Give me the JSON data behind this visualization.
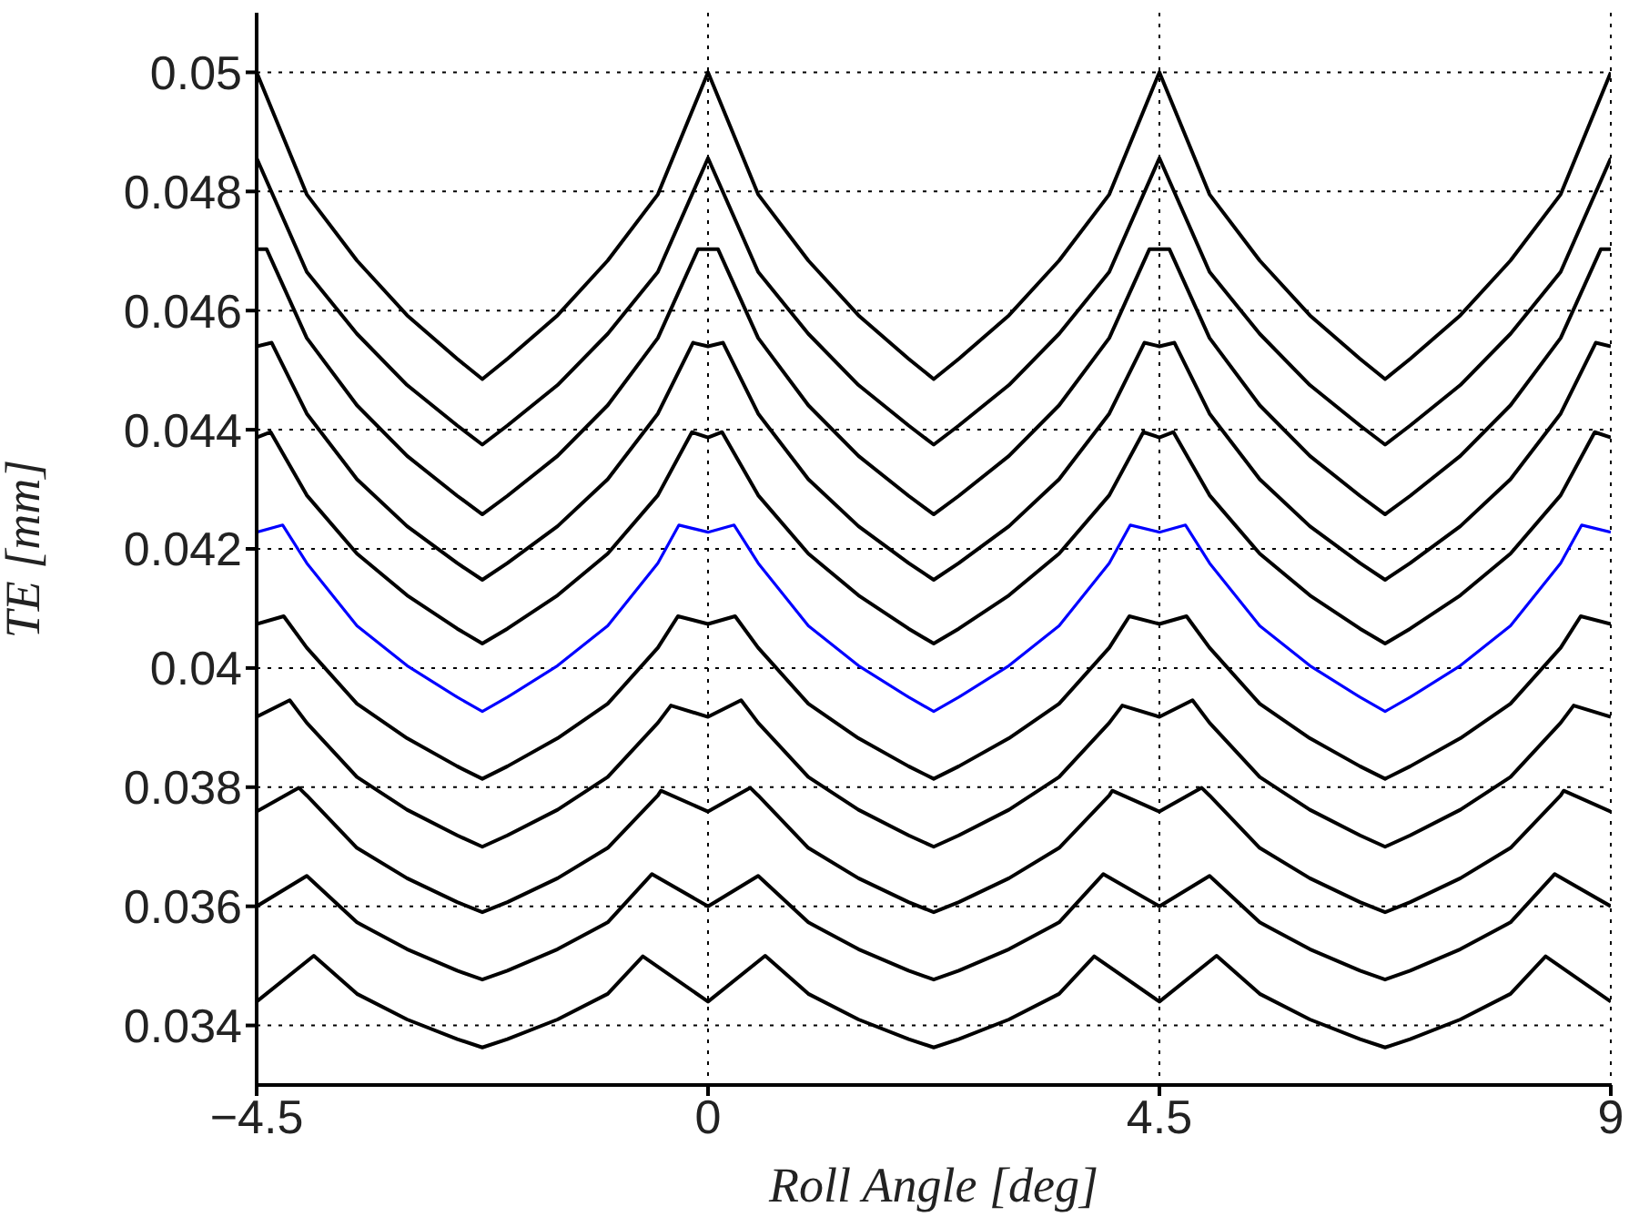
{
  "chart_data": {
    "type": "line",
    "xlabel": "Roll Angle [deg]",
    "ylabel": "TE [mm]",
    "xlim": [
      -4.5,
      9
    ],
    "xticks": [
      -4.5,
      0,
      4.5,
      9
    ],
    "ylim": [
      0.033,
      0.051
    ],
    "yticks": [
      0.034,
      0.036,
      0.038,
      0.04,
      0.042,
      0.044,
      0.046,
      0.048,
      0.05
    ],
    "grid": true,
    "series": [
      {
        "color": "#000000",
        "x": [
          -4.5,
          -4,
          -3.5,
          -3,
          -2.5,
          -2.25,
          -2,
          -1.5,
          -1,
          -0.5,
          0,
          0.5,
          1,
          1.5,
          2,
          2.25,
          2.5,
          3,
          3.5,
          4,
          4.5,
          5,
          5.5,
          6,
          6.5,
          6.75,
          7,
          7.5,
          8,
          8.5,
          9
        ],
        "values": [
          0.05,
          0.04795,
          0.04684,
          0.04592,
          0.04519,
          0.04485,
          0.04519,
          0.04592,
          0.04684,
          0.04795,
          0.05,
          0.04795,
          0.04684,
          0.04592,
          0.04519,
          0.04485,
          0.04519,
          0.04592,
          0.04684,
          0.04795,
          0.05,
          0.04795,
          0.04684,
          0.04592,
          0.04519,
          0.04485,
          0.04519,
          0.04592,
          0.04684,
          0.04795,
          0.05
        ]
      },
      {
        "color": "#000000",
        "x": [
          -4.5,
          -4,
          -3.5,
          -3,
          -2.5,
          -2.25,
          -2,
          -1.5,
          -1,
          -0.5,
          0,
          0.5,
          1,
          1.5,
          2,
          2.25,
          2.5,
          3,
          3.5,
          4,
          4.5,
          5,
          5.5,
          6,
          6.5,
          6.75,
          7,
          7.5,
          8,
          8.5,
          9
        ],
        "values": [
          0.04856,
          0.04665,
          0.04561,
          0.04475,
          0.04407,
          0.04375,
          0.04407,
          0.04475,
          0.04561,
          0.04665,
          0.04856,
          0.04665,
          0.04561,
          0.04475,
          0.04407,
          0.04375,
          0.04407,
          0.04475,
          0.04561,
          0.04665,
          0.04856,
          0.04665,
          0.04561,
          0.04475,
          0.04407,
          0.04375,
          0.04407,
          0.04475,
          0.04561,
          0.04665,
          0.04856
        ]
      },
      {
        "color": "#000000",
        "x": [
          -4.5,
          -4.4,
          -4,
          -3.5,
          -3,
          -2.5,
          -2.25,
          -2,
          -1.5,
          -1,
          -0.5,
          -0.1,
          0,
          0.1,
          0.5,
          1,
          1.5,
          2,
          2.25,
          2.5,
          3,
          3.5,
          4,
          4.4,
          4.5,
          4.6,
          5,
          5.5,
          6,
          6.5,
          6.75,
          7,
          7.5,
          8,
          8.5,
          8.9,
          9
        ],
        "values": [
          0.04703,
          0.04703,
          0.04554,
          0.04441,
          0.04356,
          0.04289,
          0.04258,
          0.04289,
          0.04356,
          0.04441,
          0.04554,
          0.04703,
          0.04703,
          0.04703,
          0.04554,
          0.04441,
          0.04356,
          0.04289,
          0.04258,
          0.04289,
          0.04356,
          0.04441,
          0.04554,
          0.04703,
          0.04703,
          0.04703,
          0.04554,
          0.04441,
          0.04356,
          0.04289,
          0.04258,
          0.04289,
          0.04356,
          0.04441,
          0.04554,
          0.04703,
          0.04703
        ]
      },
      {
        "color": "#000000",
        "x": [
          -4.5,
          -4.35,
          -4,
          -3.5,
          -3,
          -2.5,
          -2.25,
          -2,
          -1.5,
          -1,
          -0.5,
          -0.15,
          0,
          0.15,
          0.5,
          1,
          1.5,
          2,
          2.25,
          2.5,
          3,
          3.5,
          4,
          4.35,
          4.5,
          4.65,
          5,
          5.5,
          6,
          6.5,
          6.75,
          7,
          7.5,
          8,
          8.5,
          8.85,
          9
        ],
        "values": [
          0.0454,
          0.04546,
          0.04427,
          0.04317,
          0.04238,
          0.04176,
          0.04148,
          0.04176,
          0.04238,
          0.04317,
          0.04427,
          0.04546,
          0.0454,
          0.04546,
          0.04427,
          0.04317,
          0.04238,
          0.04176,
          0.04148,
          0.04176,
          0.04238,
          0.04317,
          0.04427,
          0.04546,
          0.0454,
          0.04546,
          0.04427,
          0.04317,
          0.04238,
          0.04176,
          0.04148,
          0.04176,
          0.04238,
          0.04317,
          0.04427,
          0.04546,
          0.0454
        ]
      },
      {
        "color": "#000000",
        "x": [
          -4.5,
          -4.36,
          -4,
          -3.5,
          -3,
          -2.5,
          -2.25,
          -2,
          -1.5,
          -1,
          -0.5,
          -0.16,
          0,
          0.14,
          0.5,
          1,
          1.5,
          2,
          2.25,
          2.5,
          3,
          3.5,
          4,
          4.34,
          4.5,
          4.64,
          5,
          5.5,
          6,
          6.5,
          6.75,
          7,
          7.5,
          8,
          8.5,
          8.84,
          9
        ],
        "values": [
          0.04387,
          0.04396,
          0.0429,
          0.04192,
          0.04122,
          0.04066,
          0.04041,
          0.04066,
          0.04122,
          0.04192,
          0.0429,
          0.04396,
          0.04387,
          0.04396,
          0.0429,
          0.04192,
          0.04122,
          0.04066,
          0.04041,
          0.04066,
          0.04122,
          0.04192,
          0.0429,
          0.04396,
          0.04387,
          0.04396,
          0.0429,
          0.04192,
          0.04122,
          0.04066,
          0.04041,
          0.04066,
          0.04122,
          0.04192,
          0.0429,
          0.04396,
          0.04387
        ]
      },
      {
        "color": "#0000ff",
        "x": [
          -4.5,
          -4.24,
          -4,
          -3.5,
          -3,
          -2.5,
          -2.25,
          -2,
          -1.5,
          -1,
          -0.5,
          -0.29,
          0,
          0.26,
          0.5,
          1,
          1.5,
          2,
          2.25,
          2.5,
          3,
          3.5,
          4,
          4.21,
          4.5,
          4.76,
          5,
          5.5,
          6,
          6.5,
          6.75,
          7,
          7.5,
          8,
          8.5,
          8.71,
          9
        ],
        "values": [
          0.04228,
          0.0424,
          0.04176,
          0.04071,
          0.04004,
          0.03951,
          0.03927,
          0.03951,
          0.04004,
          0.04071,
          0.04176,
          0.0424,
          0.04228,
          0.0424,
          0.04176,
          0.04071,
          0.04004,
          0.03951,
          0.03927,
          0.03951,
          0.04004,
          0.04071,
          0.04176,
          0.0424,
          0.04228,
          0.0424,
          0.04176,
          0.04071,
          0.04004,
          0.03951,
          0.03927,
          0.03951,
          0.04004,
          0.04071,
          0.04176,
          0.0424,
          0.04228
        ]
      },
      {
        "color": "#000000",
        "x": [
          -4.5,
          -4.23,
          -4,
          -3.5,
          -3,
          -2.5,
          -2.25,
          -2,
          -1.5,
          -1,
          -0.5,
          -0.3,
          0,
          0.27,
          0.5,
          1,
          1.5,
          2,
          2.25,
          2.5,
          3,
          3.5,
          4,
          4.2,
          4.5,
          4.77,
          5,
          5.5,
          6,
          6.5,
          6.75,
          7,
          7.5,
          8,
          8.5,
          8.7,
          9
        ],
        "values": [
          0.04074,
          0.04087,
          0.04034,
          0.0394,
          0.03882,
          0.03835,
          0.03814,
          0.03835,
          0.03882,
          0.0394,
          0.04034,
          0.04087,
          0.04074,
          0.04087,
          0.04034,
          0.0394,
          0.03882,
          0.03835,
          0.03814,
          0.03835,
          0.03882,
          0.0394,
          0.04034,
          0.04087,
          0.04074,
          0.04087,
          0.04034,
          0.0394,
          0.03882,
          0.03835,
          0.03814,
          0.03835,
          0.03882,
          0.0394,
          0.04034,
          0.04087,
          0.04074
        ]
      },
      {
        "color": "#000000",
        "x": [
          -4.5,
          -4.17,
          -4,
          -3.5,
          -3,
          -2.5,
          -2.25,
          -2,
          -1.5,
          -1,
          -0.5,
          -0.37,
          0,
          0.33,
          0.5,
          1,
          1.5,
          2,
          2.25,
          2.5,
          3,
          3.5,
          4,
          4.13,
          4.5,
          4.83,
          5,
          5.5,
          6,
          6.5,
          6.75,
          7,
          7.5,
          8,
          8.5,
          8.63,
          9
        ],
        "values": [
          0.03918,
          0.03946,
          0.03908,
          0.03817,
          0.03762,
          0.03719,
          0.037,
          0.03719,
          0.03762,
          0.03817,
          0.03908,
          0.03937,
          0.03918,
          0.03946,
          0.03908,
          0.03817,
          0.03762,
          0.03719,
          0.037,
          0.03719,
          0.03762,
          0.03817,
          0.03908,
          0.03937,
          0.03918,
          0.03946,
          0.03908,
          0.03817,
          0.03762,
          0.03719,
          0.037,
          0.03719,
          0.03762,
          0.03817,
          0.03908,
          0.03937,
          0.03918
        ]
      },
      {
        "color": "#000000",
        "x": [
          -4.5,
          -4.08,
          -4,
          -3.5,
          -3,
          -2.5,
          -2.25,
          -2,
          -1.5,
          -1,
          -0.5,
          -0.47,
          0,
          0.42,
          0.5,
          1,
          1.5,
          2,
          2.25,
          2.5,
          3,
          3.5,
          4,
          4.03,
          4.5,
          4.92,
          5,
          5.5,
          6,
          6.5,
          6.75,
          7,
          7.5,
          8,
          8.5,
          8.53,
          9
        ],
        "values": [
          0.03759,
          0.03799,
          0.03786,
          0.03698,
          0.03647,
          0.03607,
          0.0359,
          0.03607,
          0.03647,
          0.03698,
          0.03786,
          0.03794,
          0.03759,
          0.03799,
          0.03786,
          0.03698,
          0.03647,
          0.03607,
          0.0359,
          0.03607,
          0.03647,
          0.03698,
          0.03786,
          0.03794,
          0.03759,
          0.03799,
          0.03786,
          0.03698,
          0.03647,
          0.03607,
          0.0359,
          0.03607,
          0.03647,
          0.03698,
          0.03786,
          0.03794,
          0.03759
        ]
      },
      {
        "color": "#000000",
        "x": [
          -4.5,
          -4,
          -3.5,
          -3,
          -2.5,
          -2.25,
          -2,
          -1.5,
          -1,
          -0.56,
          0,
          0.5,
          1,
          1.5,
          2,
          2.25,
          2.5,
          3,
          3.5,
          3.94,
          4.5,
          5,
          5.5,
          6,
          6.5,
          6.75,
          7,
          7.5,
          8,
          8.44,
          9
        ],
        "values": [
          0.036,
          0.03651,
          0.03573,
          0.03528,
          0.03492,
          0.03477,
          0.03492,
          0.03528,
          0.03573,
          0.03654,
          0.036,
          0.03651,
          0.03573,
          0.03528,
          0.03492,
          0.03477,
          0.03492,
          0.03528,
          0.03573,
          0.03654,
          0.036,
          0.03651,
          0.03573,
          0.03528,
          0.03492,
          0.03477,
          0.03492,
          0.03528,
          0.03573,
          0.03654,
          0.036
        ]
      },
      {
        "color": "#000000",
        "x": [
          -4.5,
          -3.93,
          -3.5,
          -3,
          -2.5,
          -2.25,
          -2,
          -1.5,
          -1,
          -0.65,
          0,
          0.57,
          1,
          1.5,
          2,
          2.25,
          2.5,
          3,
          3.5,
          3.85,
          4.5,
          5.07,
          5.5,
          6,
          6.5,
          6.75,
          7,
          7.5,
          8,
          8.35,
          9
        ],
        "values": [
          0.0344,
          0.03517,
          0.03453,
          0.0341,
          0.03377,
          0.03363,
          0.03377,
          0.0341,
          0.03453,
          0.03516,
          0.0344,
          0.03517,
          0.03453,
          0.0341,
          0.03377,
          0.03363,
          0.03377,
          0.0341,
          0.03453,
          0.03516,
          0.0344,
          0.03517,
          0.03453,
          0.0341,
          0.03377,
          0.03363,
          0.03377,
          0.0341,
          0.03453,
          0.03516,
          0.0344
        ]
      }
    ]
  }
}
